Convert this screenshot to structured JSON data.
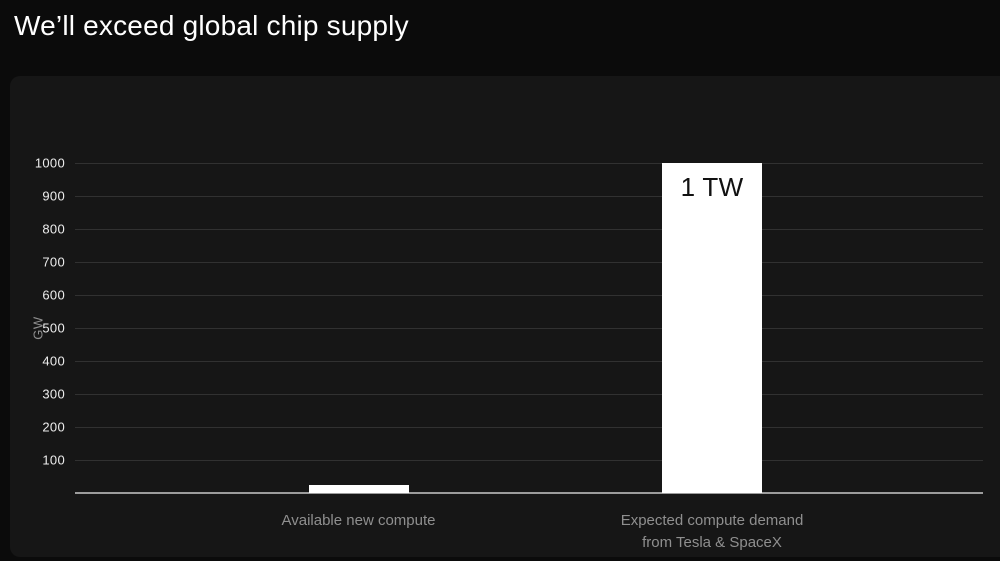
{
  "header": {
    "title": "We’ll exceed global chip supply"
  },
  "chart_data": {
    "type": "bar",
    "title": "We’ll exceed global chip supply",
    "categories": [
      "Available new compute",
      "Expected compute demand\nfrom Tesla & SpaceX"
    ],
    "values": [
      25,
      1000
    ],
    "bar_labels": [
      "",
      "1 TW"
    ],
    "xlabel": "",
    "ylabel": "GW",
    "yticks": [
      100,
      200,
      300,
      400,
      500,
      600,
      700,
      800,
      900,
      1000
    ],
    "ylim": [
      0,
      1000
    ],
    "grid": true,
    "legend": false,
    "colors": {
      "page_background": "#0b0b0b",
      "panel_background": "#161616",
      "gridline": "#313131",
      "axis_line": "#9c9c9c",
      "tick_text": "#ededed",
      "muted_text": "#8f8f8f",
      "bar_fill": "#ffffff",
      "bar_label_text": "#111111",
      "title_text": "#ffffff"
    }
  }
}
